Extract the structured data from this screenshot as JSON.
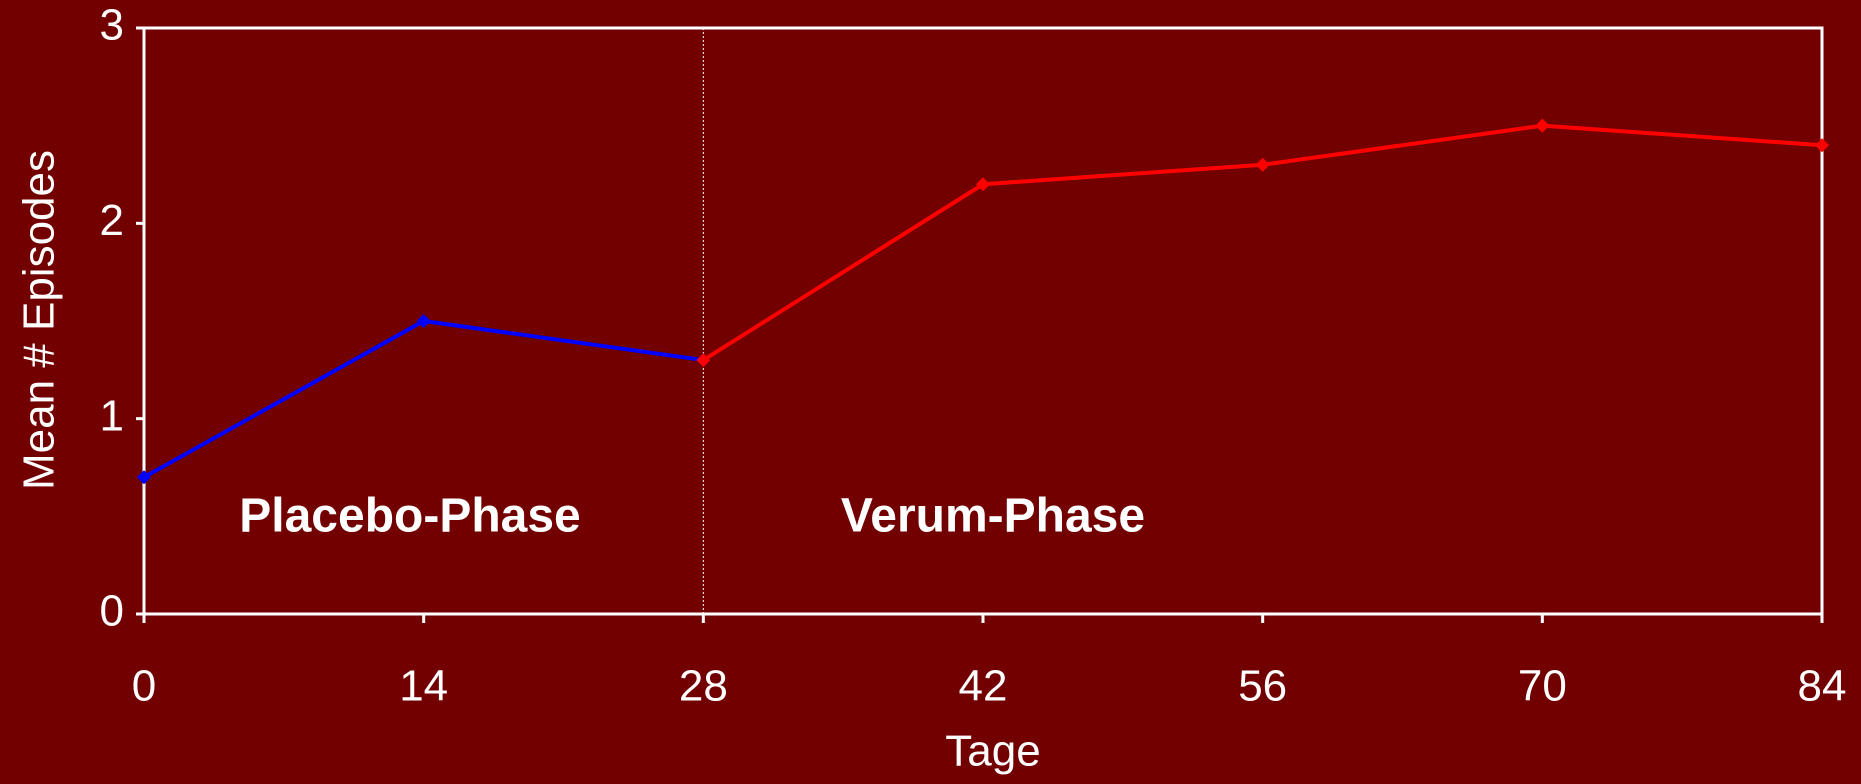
{
  "chart_data": {
    "type": "line",
    "x_label": "Tage",
    "y_label": "Mean # Episodes",
    "xlim": [
      0,
      84
    ],
    "xticks": [
      0,
      14,
      28,
      42,
      56,
      70,
      84
    ],
    "ylim": [
      0,
      3
    ],
    "yticks": [
      0,
      1,
      2,
      3
    ],
    "divider_x": 28,
    "annotations": [
      "Placebo-Phase",
      "Verum-Phase"
    ],
    "series": [
      {
        "color": "#0000ff",
        "x": [
          0,
          14,
          28
        ],
        "values": [
          0.7,
          1.5,
          1.3
        ]
      },
      {
        "color": "#ff0000",
        "x": [
          28,
          42,
          56,
          70,
          84
        ],
        "values": [
          1.3,
          2.2,
          2.3,
          2.5,
          2.4
        ]
      }
    ]
  }
}
